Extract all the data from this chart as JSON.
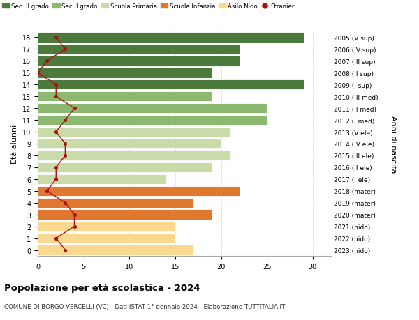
{
  "ages": [
    0,
    1,
    2,
    3,
    4,
    5,
    6,
    7,
    8,
    9,
    10,
    11,
    12,
    13,
    14,
    15,
    16,
    17,
    18
  ],
  "bar_values": [
    17,
    15,
    15,
    19,
    17,
    22,
    14,
    19,
    21,
    20,
    21,
    25,
    25,
    19,
    29,
    19,
    22,
    22,
    29
  ],
  "bar_colors": [
    "#FAD88F",
    "#FAD88F",
    "#FAD88F",
    "#E07830",
    "#E07830",
    "#E07830",
    "#C8DBA8",
    "#C8DBA8",
    "#C8DBA8",
    "#C8DBA8",
    "#C8DBA8",
    "#8DB870",
    "#8DB870",
    "#8DB870",
    "#4B7A3C",
    "#4B7A3C",
    "#4B7A3C",
    "#4B7A3C",
    "#4B7A3C"
  ],
  "stranieri": [
    3,
    2,
    4,
    4,
    3,
    1,
    2,
    2,
    3,
    3,
    2,
    3,
    4,
    2,
    2,
    0,
    1,
    3,
    2
  ],
  "right_labels": [
    "2023 (nido)",
    "2022 (nido)",
    "2021 (nido)",
    "2020 (mater)",
    "2019 (mater)",
    "2018 (mater)",
    "2017 (I ele)",
    "2016 (II ele)",
    "2015 (III ele)",
    "2014 (IV ele)",
    "2013 (V ele)",
    "2012 (I med)",
    "2011 (II med)",
    "2010 (III med)",
    "2009 (I sup)",
    "2008 (II sup)",
    "2007 (III sup)",
    "2006 (IV sup)",
    "2005 (V sup)"
  ],
  "legend_labels": [
    "Sec. II grado",
    "Sec. I grado",
    "Scuola Primaria",
    "Scuola Infanzia",
    "Asilo Nido",
    "Stranieri"
  ],
  "legend_colors": [
    "#4B7A3C",
    "#8DB870",
    "#C8DBA8",
    "#E07830",
    "#FAD88F",
    "#AA1111"
  ],
  "ylabel_left": "Età alunni",
  "ylabel_right": "Anni di nascita",
  "title": "Popolazione per età scolastica - 2024",
  "subtitle": "COMUNE DI BORGO VERCELLI (VC) - Dati ISTAT 1° gennaio 2024 - Elaborazione TUTTITALIA.IT",
  "xlim": [
    0,
    32
  ],
  "xticks": [
    0,
    5,
    10,
    15,
    20,
    25,
    30
  ],
  "stranieri_color": "#AA1111",
  "bg_color": "#FFFFFF",
  "grid_color": "#CCCCCC"
}
